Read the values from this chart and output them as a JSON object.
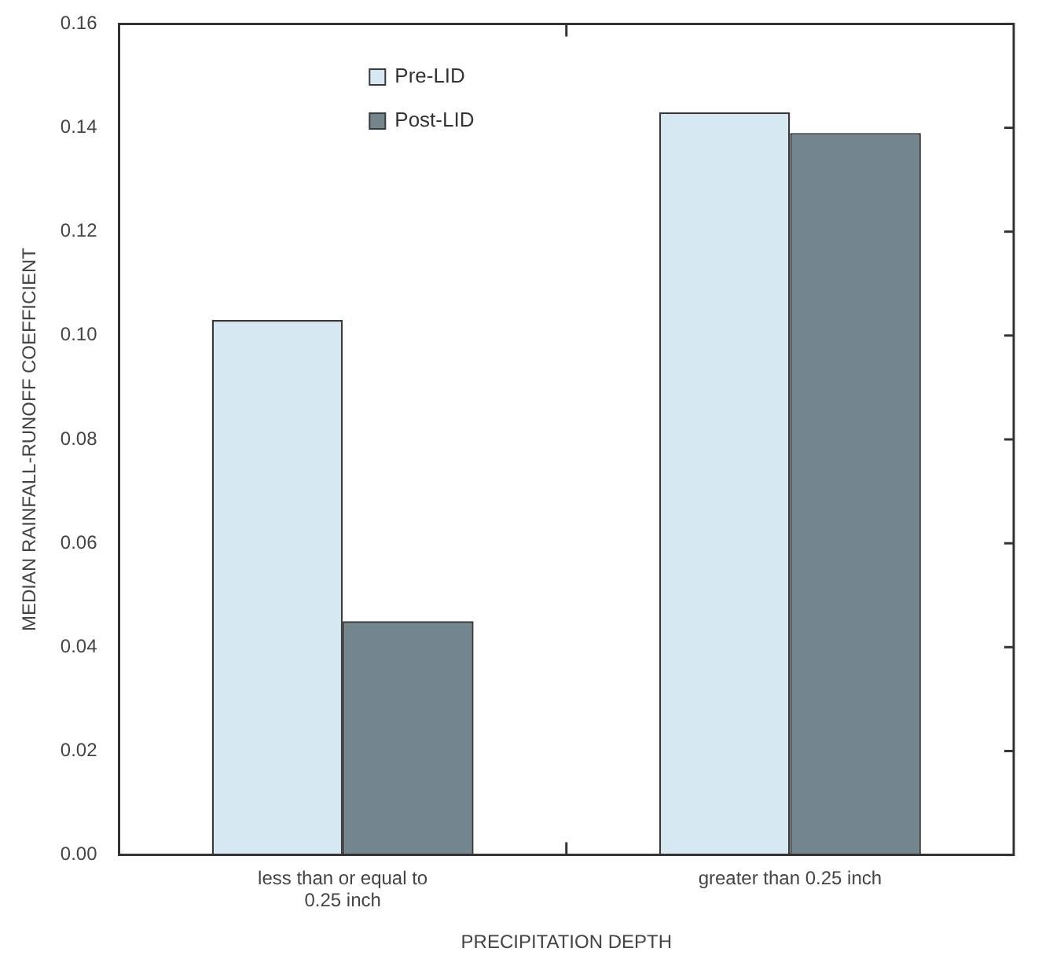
{
  "chart_data": {
    "type": "bar",
    "xlabel": "PRECIPITATION DEPTH",
    "ylabel": "MEDIAN RAINFALL-RUNOFF COEFFICIENT",
    "categories": [
      "less than or equal to 0.25 inch",
      "greater than 0.25 inch"
    ],
    "series": [
      {
        "name": "Pre-LID",
        "color": "#d6e9f3",
        "values": [
          0.103,
          0.143
        ]
      },
      {
        "name": "Post-LID",
        "color": "#74868d",
        "values": [
          0.045,
          0.139
        ]
      }
    ],
    "ylim": [
      0,
      0.16
    ],
    "yticks": [
      {
        "value": 0,
        "label": "0.00"
      },
      {
        "value": 0.02,
        "label": "0.02"
      },
      {
        "value": 0.04,
        "label": "0.04"
      },
      {
        "value": 0.06,
        "label": "0.06"
      },
      {
        "value": 0.08,
        "label": "0.08"
      },
      {
        "value": 0.1,
        "label": "0.10"
      },
      {
        "value": 0.12,
        "label": "0.12"
      },
      {
        "value": 0.14,
        "label": "0.14"
      },
      {
        "value": 0.16,
        "label": "0.16"
      }
    ],
    "grid": false,
    "legend": "top"
  }
}
